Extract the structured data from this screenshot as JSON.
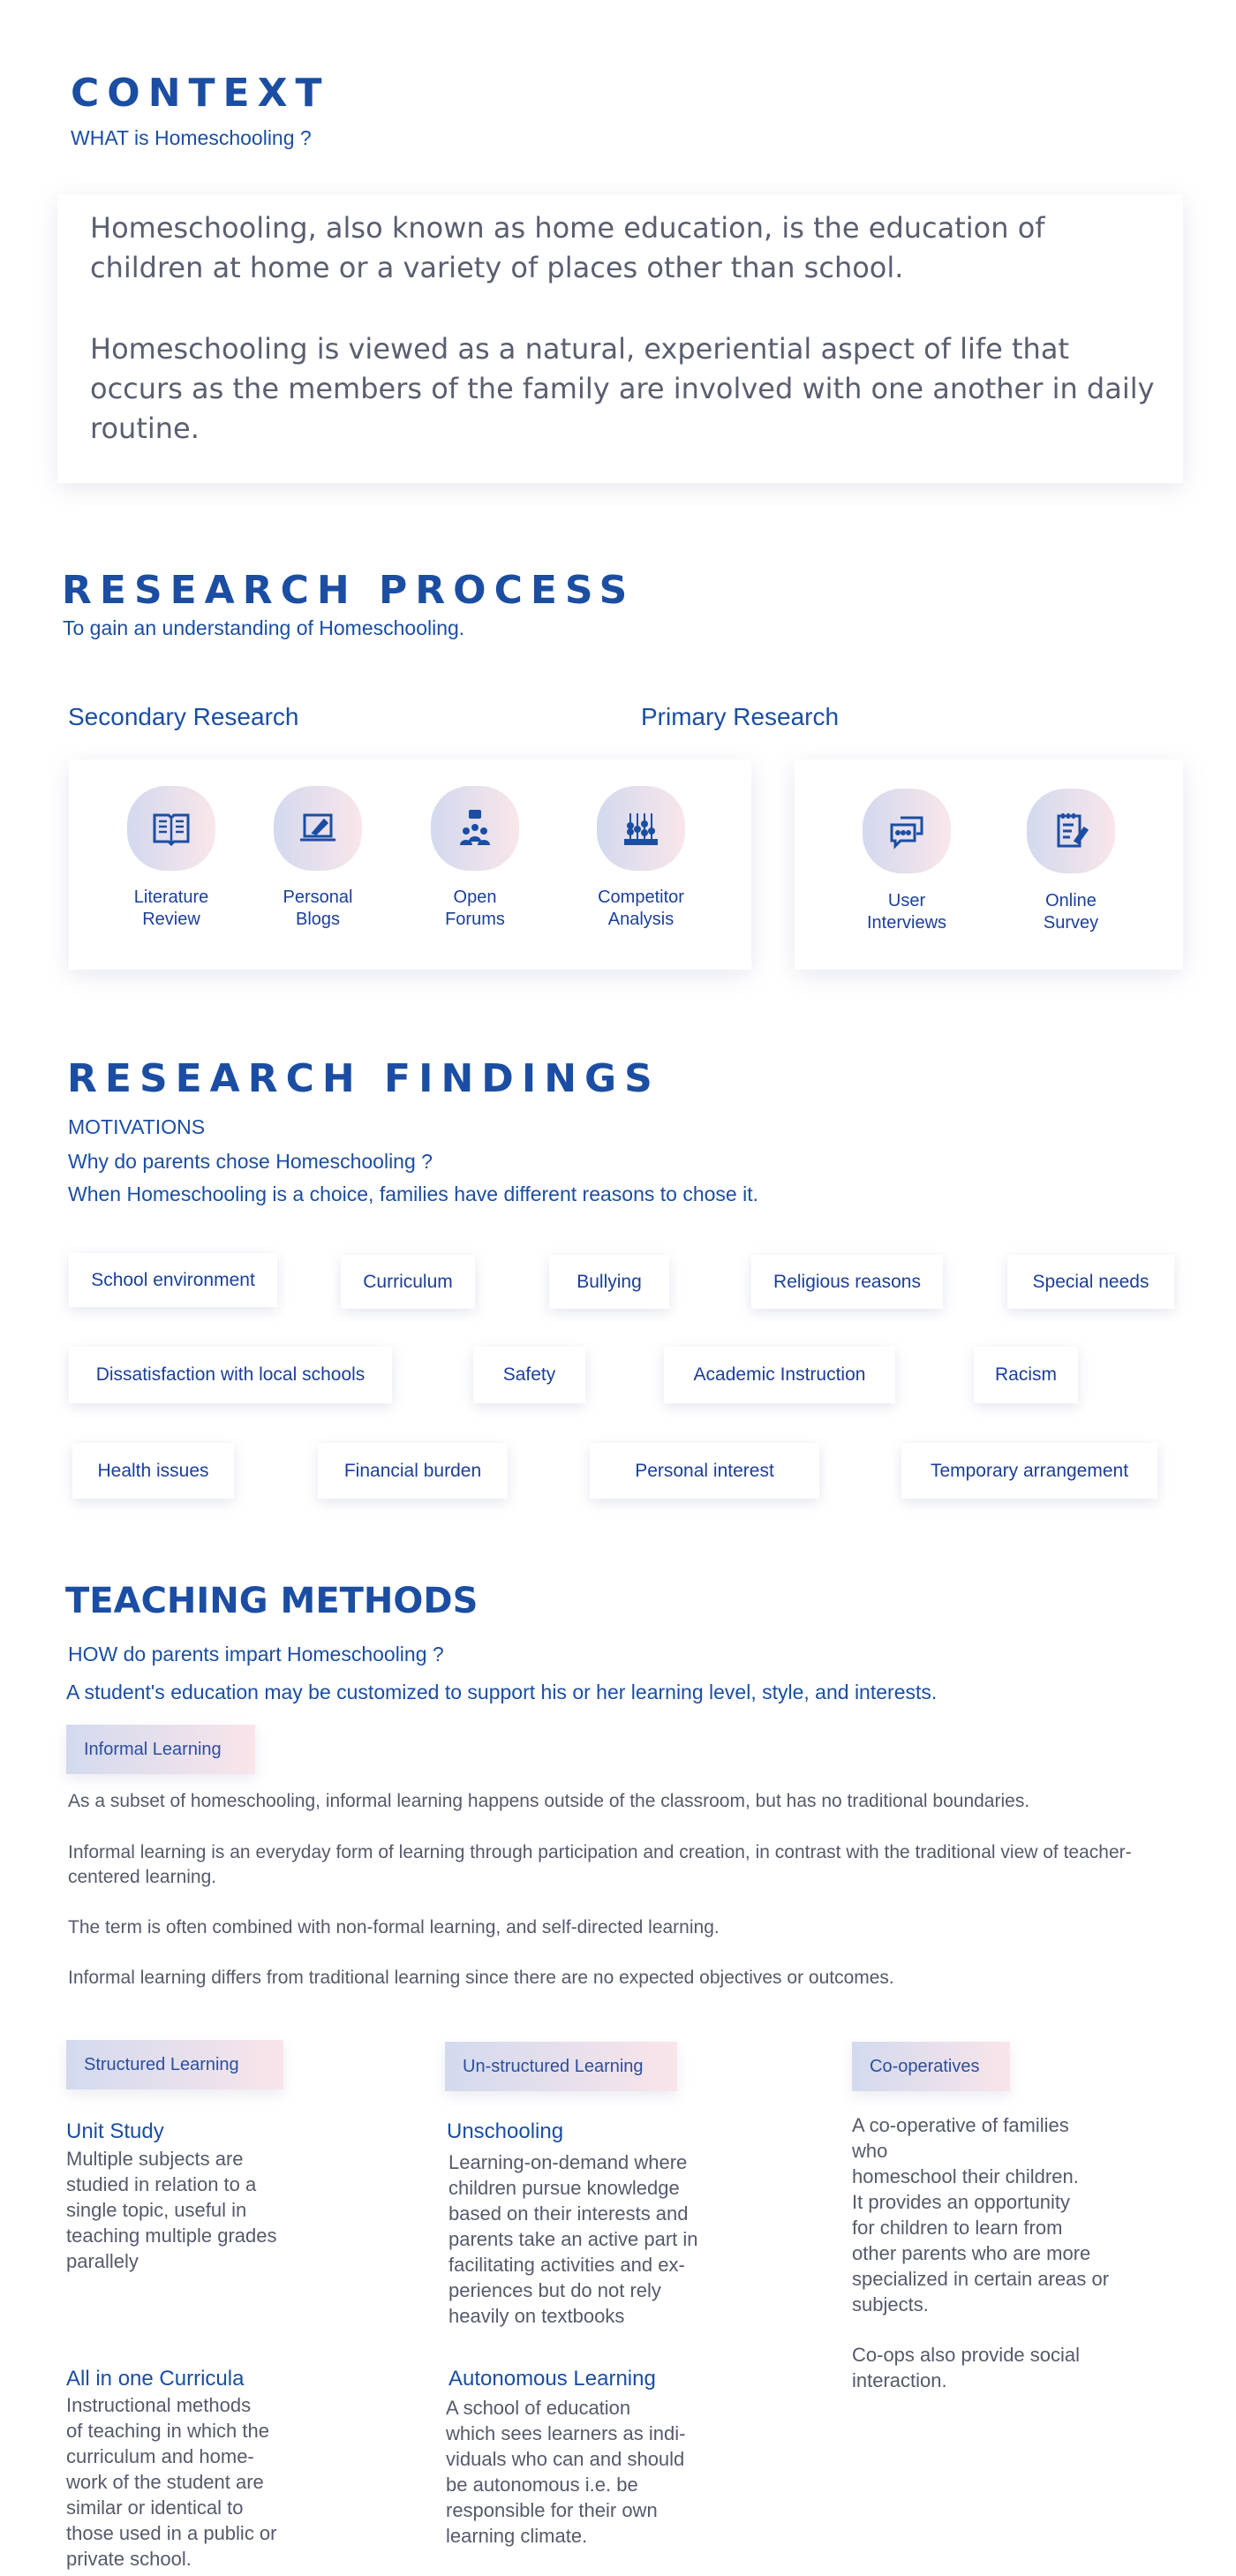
{
  "context": {
    "title": "CONTEXT",
    "subtitle": "WHAT is Homeschooling ?",
    "paragraph1": "Homeschooling, also known as home education, is the education of children at home or a variety of places other than school.",
    "paragraph2": "Homeschooling is viewed as a natural, experiential aspect of life that occurs as the members of the family are involved with one another in daily routine."
  },
  "research_process": {
    "title": "RESEARCH PROCESS",
    "subtitle": "To gain an understanding of Homeschooling.",
    "secondary": {
      "label": "Secondary Research",
      "items": [
        {
          "line1": "Literature",
          "line2": "Review",
          "icon": "book-icon"
        },
        {
          "line1": "Personal",
          "line2": "Blogs",
          "icon": "laptop-pen-icon"
        },
        {
          "line1": "Open",
          "line2": "Forums",
          "icon": "group-chat-icon"
        },
        {
          "line1": "Competitor",
          "line2": "Analysis",
          "icon": "abacus-icon"
        }
      ]
    },
    "primary": {
      "label": "Primary Research",
      "items": [
        {
          "line1": "User",
          "line2": "Interviews",
          "icon": "chat-bubbles-icon"
        },
        {
          "line1": "Online",
          "line2": "Survey",
          "icon": "notepad-icon"
        }
      ]
    }
  },
  "findings": {
    "title": "RESEARCH FINDINGS",
    "section": "MOTIVATIONS",
    "question": "Why do parents chose Homeschooling ?",
    "intro": "When Homeschooling is a choice, families have different reasons to chose it.",
    "tags": [
      "School environment",
      "Curriculum",
      "Bullying",
      "Religious reasons",
      "Special needs",
      "Dissatisfaction with local schools",
      "Safety",
      "Academic Instruction",
      "Racism",
      "Health issues",
      "Financial burden",
      "Personal interest",
      "Temporary arrangement"
    ]
  },
  "teaching": {
    "title": "TEACHING METHODS",
    "question": "HOW do parents impart Homeschooling ?",
    "intro": "A student's education may be customized to support his or her learning level, style, and interests.",
    "informal": {
      "label": "Informal Learning",
      "paragraphs": [
        "As a subset of homeschooling, informal learning happens outside of the classroom, but has no traditional boundaries.",
        "Informal learning is an everyday form of learning through participation and creation, in contrast with the traditional view of teacher-centered learning.",
        "The term is often combined with non-formal learning, and self-directed learning.",
        "Informal learning differs from traditional learning since there are no expected objectives or outcomes."
      ]
    },
    "structured": {
      "label": "Structured Learning",
      "items": [
        {
          "title": "Unit Study",
          "body": "Multiple subjects are\nstudied in relation to a\nsingle topic, useful in\nteaching multiple grades\nparallely"
        },
        {
          "title": "All in one Curricula",
          "body": "Instructional methods\nof teaching in which the\ncurriculum and home-\nwork of the student are\nsimilar or identical to\nthose used in a public or\nprivate school."
        }
      ]
    },
    "unstructured": {
      "label": "Un-structured Learning",
      "items": [
        {
          "title": "Unschooling",
          "body": "Learning-on-demand where\nchildren pursue knowledge\nbased on their interests and\nparents take an active part in\nfacilitating activities and ex-\nperiences but do not rely\nheavily on textbooks"
        },
        {
          "title": "Autonomous Learning",
          "body": "A school of education\nwhich sees learners as indi-\nviduals who can and should\nbe autonomous i.e. be\nresponsible for their own\nlearning climate."
        }
      ]
    },
    "coops": {
      "label": "Co-operatives",
      "body1": "A co-operative of families\nwho\nhomeschool their children.\nIt provides an opportunity\nfor children to learn from\nother parents who are more\nspecialized in certain areas or\nsubjects.",
      "body2": "Co-ops also provide social\ninteraction."
    }
  },
  "colors": {
    "accent": "#1b4ea3",
    "text": "#555a6b",
    "gradient_start": "#d3daee",
    "gradient_end": "#f9e5ea"
  }
}
